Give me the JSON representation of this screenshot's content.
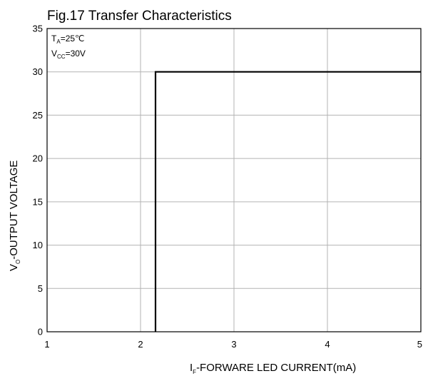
{
  "chart_data": {
    "type": "line",
    "title": "Fig.17 Transfer Characteristics",
    "xlabel": {
      "main": "I",
      "sub": "F",
      "rest": "-FORWARE LED CURRENT(mA)"
    },
    "ylabel": {
      "main": "V",
      "sub": "O",
      "rest": "-OUTPUT VOLTAGE"
    },
    "conditions": [
      {
        "main": "T",
        "sub": "A",
        "rest": "=25℃"
      },
      {
        "main": "V",
        "sub": "CC",
        "rest": "=30V"
      }
    ],
    "xlim": [
      1,
      5
    ],
    "ylim": [
      0,
      35
    ],
    "x_ticks": [
      1,
      2,
      3,
      4,
      5
    ],
    "y_ticks": [
      0,
      5,
      10,
      15,
      20,
      25,
      30,
      35
    ],
    "grid": true,
    "series": [
      {
        "x": [
          2.16,
          2.16,
          5
        ],
        "y": [
          0,
          30,
          30
        ]
      }
    ]
  }
}
